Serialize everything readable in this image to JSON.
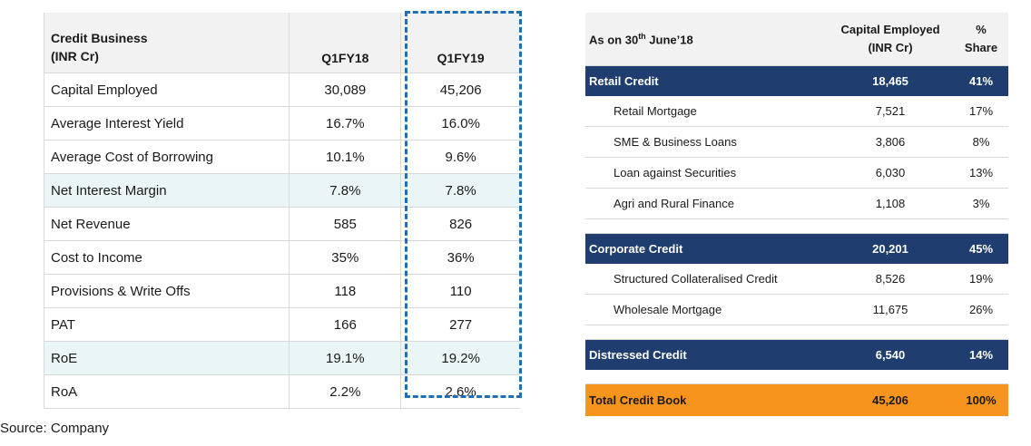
{
  "left_table": {
    "header": {
      "title_line1": "Credit Business",
      "title_line2": "(INR Cr)",
      "col1": "Q1FY18",
      "col2": "Q1FY19"
    },
    "rows": [
      {
        "label": "Capital Employed",
        "q1fy18": "30,089",
        "q1fy19": "45,206"
      },
      {
        "label": "Average Interest Yield",
        "q1fy18": "16.7%",
        "q1fy19": "16.0%"
      },
      {
        "label": "Average Cost of Borrowing",
        "q1fy18": "10.1%",
        "q1fy19": "9.6%"
      },
      {
        "label": "Net Interest Margin",
        "q1fy18": "7.8%",
        "q1fy19": "7.8%"
      },
      {
        "label": "Net Revenue",
        "q1fy18": "585",
        "q1fy19": "826"
      },
      {
        "label": "Cost to Income",
        "q1fy18": "35%",
        "q1fy19": "36%"
      },
      {
        "label": "Provisions & Write Offs",
        "q1fy18": "118",
        "q1fy19": "110"
      },
      {
        "label": "PAT",
        "q1fy18": "166",
        "q1fy19": "277"
      },
      {
        "label": "RoE",
        "q1fy18": "19.1%",
        "q1fy19": "19.2%"
      },
      {
        "label": "RoA",
        "q1fy18": "2.2%",
        "q1fy19": "2.6%"
      }
    ]
  },
  "right_table": {
    "header": {
      "title_prefix": "As on 30",
      "title_sup": "th",
      "title_suffix": " June’18",
      "cap_line1": "Capital Employed",
      "cap_line2": "(INR Cr)",
      "share_line1": "%",
      "share_line2": "Share"
    },
    "retail": {
      "name": "Retail  Credit",
      "cap": "18,465",
      "share": "41%"
    },
    "retail_items": [
      {
        "name": "Retail Mortgage",
        "cap": "7,521",
        "share": "17%"
      },
      {
        "name": "SME & Business Loans",
        "cap": "3,806",
        "share": "8%"
      },
      {
        "name": "Loan against Securities",
        "cap": "6,030",
        "share": "13%"
      },
      {
        "name": "Agri and Rural Finance",
        "cap": "1,108",
        "share": "3%"
      }
    ],
    "corporate": {
      "name": "Corporate Credit",
      "cap": "20,201",
      "share": "45%"
    },
    "corporate_items": [
      {
        "name": "Structured Collateralised Credit",
        "cap": "8,526",
        "share": "19%"
      },
      {
        "name": "Wholesale Mortgage",
        "cap": "11,675",
        "share": "26%"
      }
    ],
    "distressed": {
      "name": "Distressed Credit",
      "cap": "6,540",
      "share": "14%"
    },
    "total": {
      "name": "Total Credit Book",
      "cap": "45,206",
      "share": "100%"
    }
  },
  "source_note": "Source: Company",
  "colors": {
    "band_navy": "#1f3d6e",
    "total_orange": "#f7941d",
    "highlight_row": "#eaf5f6",
    "dashed_outline": "#1f6fb6"
  }
}
